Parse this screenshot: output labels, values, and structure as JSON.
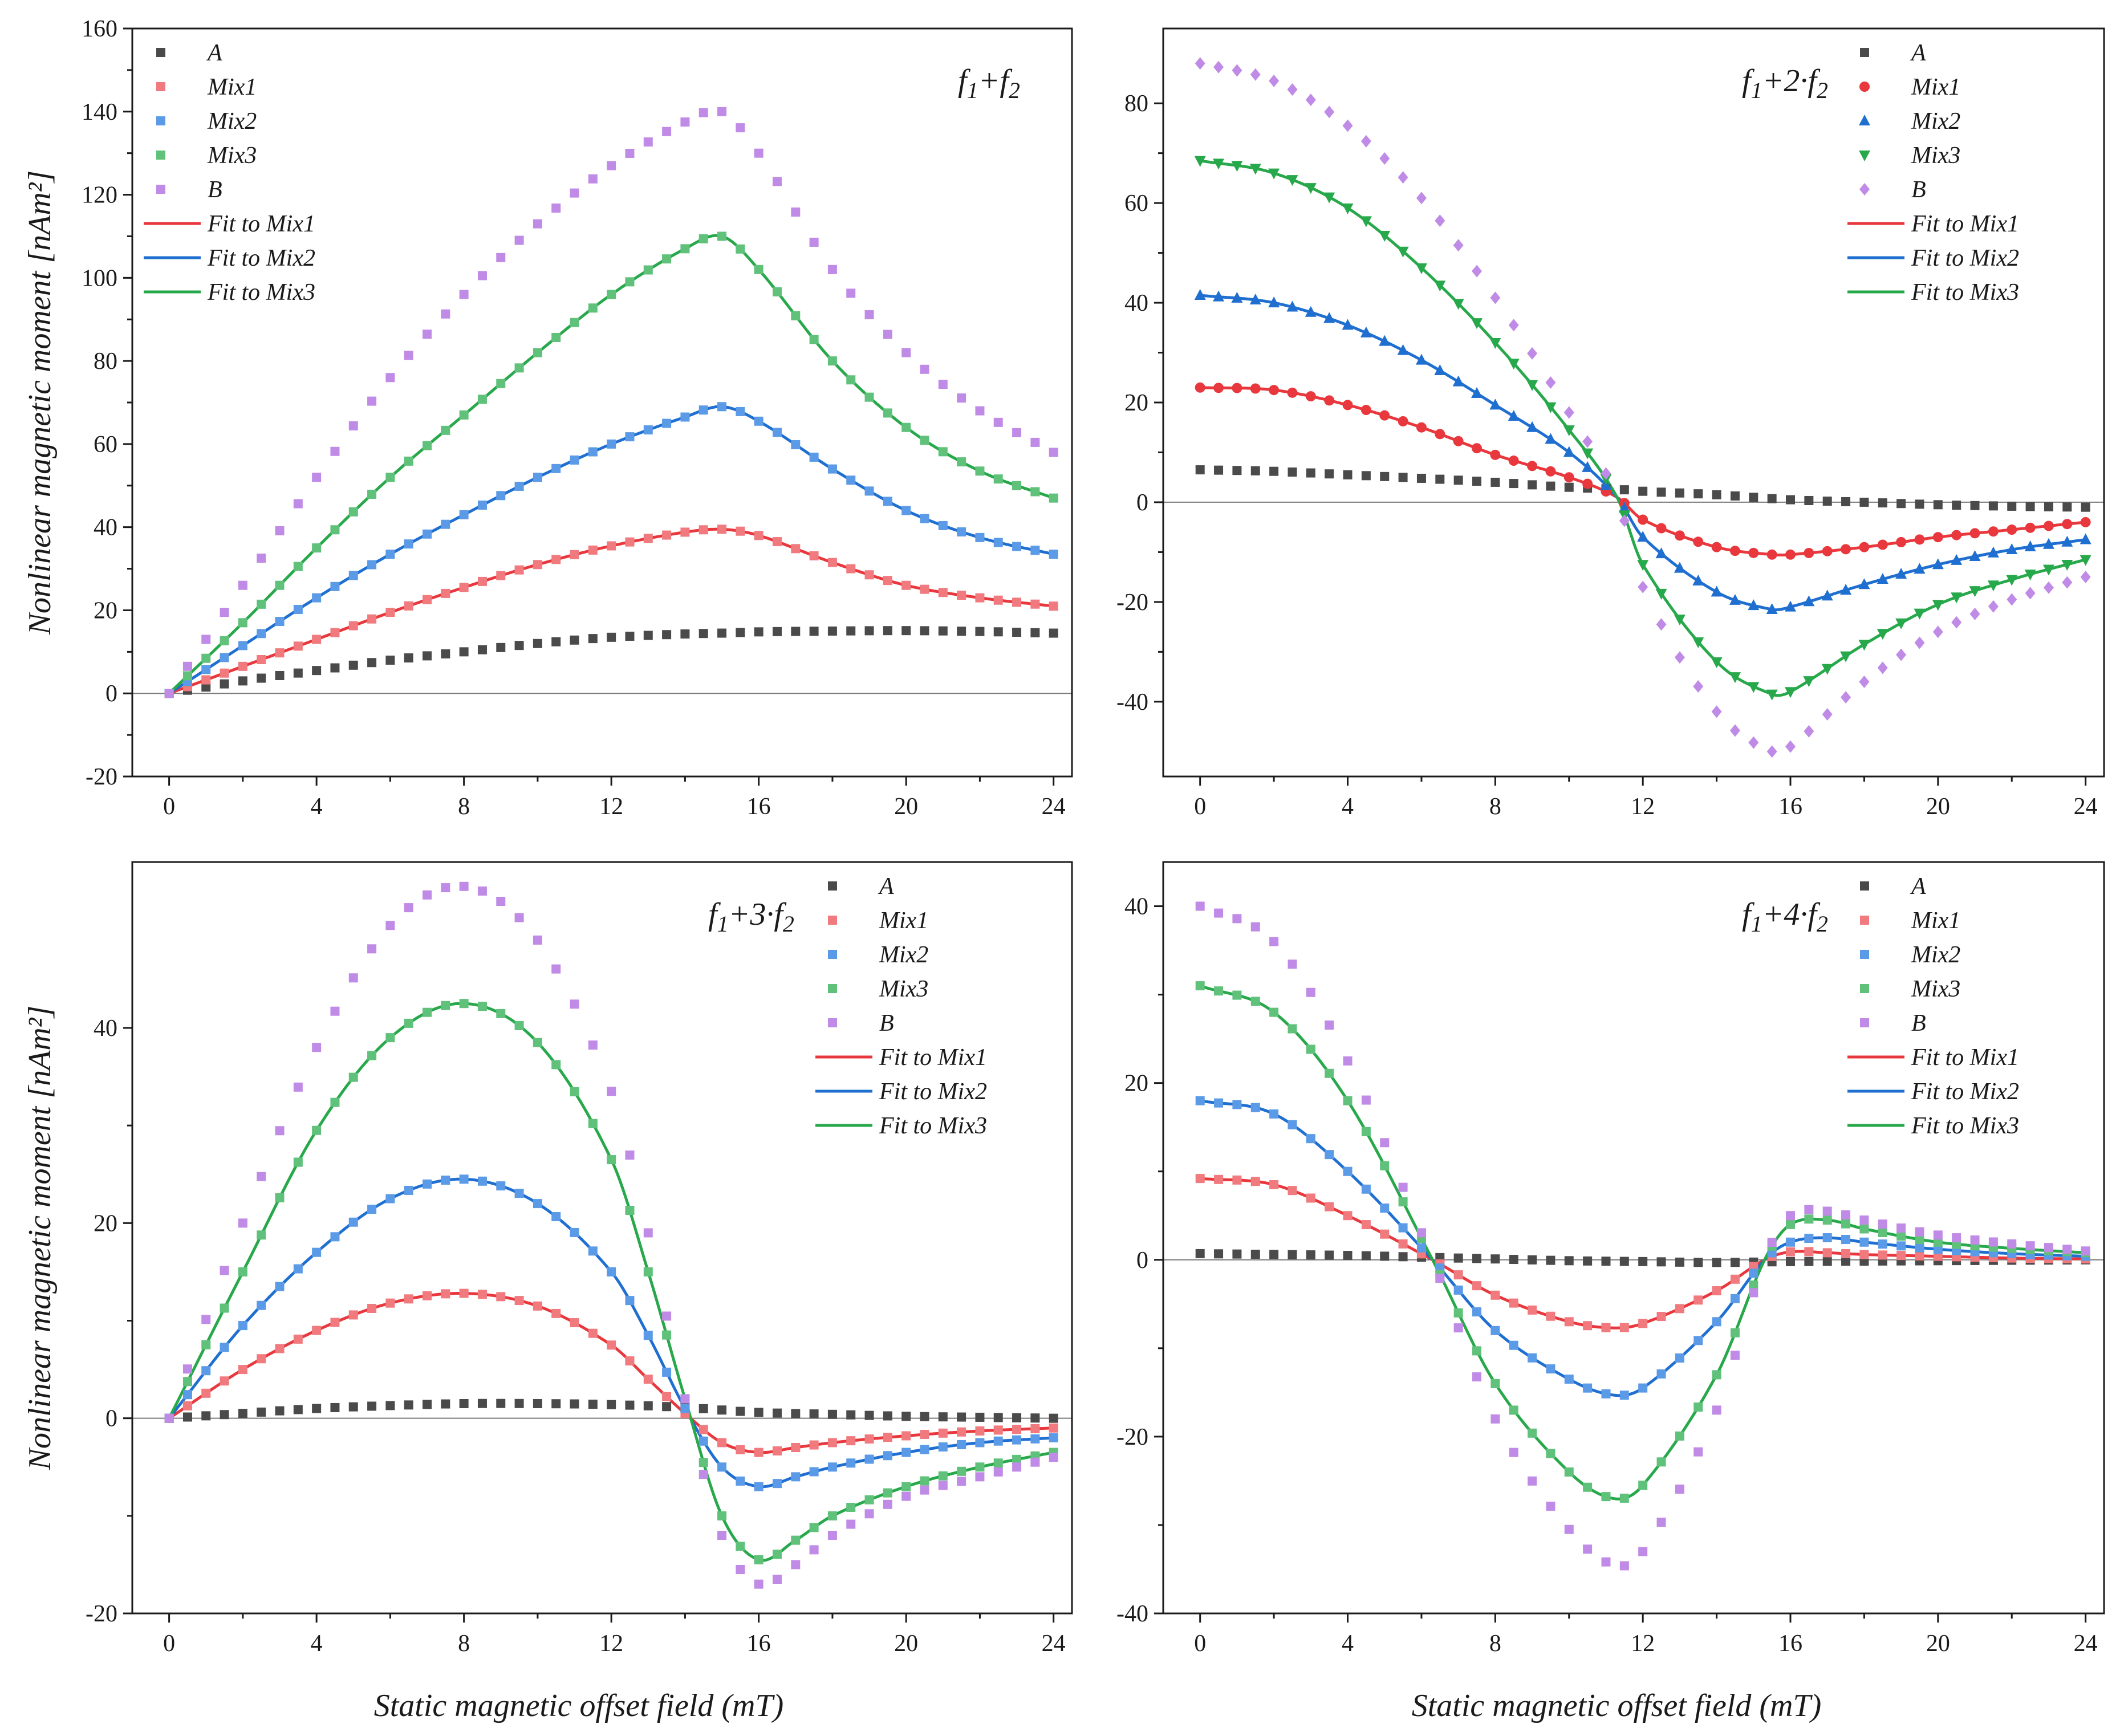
{
  "figure": {
    "shared_xlabel": "Static magnetic offset field (mT)",
    "shared_ylabel": "Nonlinear magnetic moment [nAm²]"
  },
  "styles": {
    "A": {
      "color": "#4a4a4a",
      "fill": "#4a4a4a"
    },
    "Mix1": {
      "color": "#e8383d",
      "fill": "#f07a7e"
    },
    "Mix2": {
      "color": "#1f6fd1",
      "fill": "#5b9ae6"
    },
    "Mix3": {
      "color": "#27a84a",
      "fill": "#5fc17a"
    },
    "B": {
      "color": "#b57ce0",
      "fill": "#c08be6"
    }
  },
  "chart_data": [
    {
      "type": "scatter",
      "panel": "top-left",
      "annotation": {
        "base": "f",
        "parts": [
          "1",
          "+f",
          "2"
        ]
      },
      "xlabel": "",
      "ylabel": "Nonlinear magnetic moment [nAm²]",
      "xlim": [
        -1,
        24.5
      ],
      "ylim": [
        -20,
        160
      ],
      "xticks": [
        0,
        4,
        8,
        12,
        16,
        20,
        24
      ],
      "yticks": [
        -20,
        0,
        20,
        40,
        60,
        80,
        100,
        120,
        140,
        160
      ],
      "marker": "square",
      "legend_loc": "top-left",
      "series": [
        {
          "name": "A",
          "x": [
            0,
            2,
            4,
            6,
            8,
            10,
            12,
            14,
            15,
            16,
            18,
            20,
            22,
            24
          ],
          "values": [
            0,
            3,
            5.5,
            8,
            10,
            12,
            13.5,
            14.3,
            14.5,
            14.8,
            15,
            15.1,
            14.9,
            14.5
          ]
        },
        {
          "name": "Mix1",
          "x": [
            0,
            2,
            4,
            6,
            8,
            10,
            12,
            14,
            15,
            16,
            18,
            20,
            22,
            24
          ],
          "values": [
            0,
            6.5,
            13,
            19.5,
            25.5,
            31,
            35.5,
            38.8,
            39.5,
            38,
            31.5,
            26,
            23,
            21
          ]
        },
        {
          "name": "Mix2",
          "x": [
            0,
            2,
            4,
            6,
            8,
            10,
            12,
            14,
            15,
            16,
            18,
            20,
            22,
            24
          ],
          "values": [
            0,
            11.5,
            23,
            33.5,
            43,
            52,
            60,
            66.5,
            69,
            65.5,
            54,
            44,
            37.5,
            33.5
          ]
        },
        {
          "name": "Mix3",
          "x": [
            0,
            2,
            4,
            6,
            8,
            10,
            12,
            14,
            15,
            16,
            18,
            20,
            22,
            24
          ],
          "values": [
            0,
            17,
            35,
            52,
            67,
            82,
            96,
            107,
            110,
            102,
            80,
            64,
            53.5,
            47
          ]
        },
        {
          "name": "B",
          "x": [
            0,
            2,
            4,
            6,
            8,
            10,
            12,
            14,
            15,
            16,
            18,
            20,
            22,
            24
          ],
          "values": [
            0,
            26,
            52,
            76,
            96,
            113,
            127,
            137.5,
            140,
            130,
            102,
            82,
            68,
            58
          ]
        },
        {
          "name": "Fit to Mix1",
          "of": "Mix1"
        },
        {
          "name": "Fit to Mix2",
          "of": "Mix2"
        },
        {
          "name": "Fit to Mix3",
          "of": "Mix3"
        }
      ]
    },
    {
      "type": "scatter",
      "panel": "top-right",
      "annotation": {
        "base": "f",
        "parts": [
          "1",
          "+2·f",
          "2"
        ]
      },
      "xlabel": "",
      "ylabel": "",
      "xlim": [
        -1,
        24.5
      ],
      "ylim": [
        -55,
        95
      ],
      "xticks": [
        0,
        4,
        8,
        12,
        16,
        20,
        24
      ],
      "yticks": [
        -40,
        -20,
        0,
        20,
        40,
        60,
        80
      ],
      "marker": "mixed",
      "legend_loc": "top-right",
      "series": [
        {
          "name": "A",
          "marker": "square",
          "x": [
            0,
            2,
            4,
            6,
            8,
            10,
            11.3,
            12,
            14,
            16,
            18,
            20,
            22,
            24
          ],
          "values": [
            6.5,
            6.2,
            5.5,
            4.8,
            4,
            3,
            2.6,
            2.2,
            1.5,
            0.5,
            0,
            -0.5,
            -0.8,
            -1
          ]
        },
        {
          "name": "Mix1",
          "marker": "circle",
          "x": [
            0,
            2,
            4,
            6,
            8,
            10,
            11.3,
            12,
            14,
            15.5,
            16,
            18,
            20,
            22,
            24
          ],
          "values": [
            23,
            22.5,
            19.5,
            15,
            9.5,
            5,
            1,
            -3.5,
            -9,
            -10.5,
            -10.5,
            -9,
            -7,
            -5.5,
            -4
          ]
        },
        {
          "name": "Mix2",
          "marker": "triangle-up",
          "x": [
            0,
            2,
            4,
            6,
            8,
            10,
            11.3,
            12,
            14,
            15.5,
            16,
            18,
            20,
            22,
            24
          ],
          "values": [
            41.5,
            40,
            35.5,
            28.5,
            19.5,
            10,
            1,
            -7,
            -18,
            -21.5,
            -21,
            -16.5,
            -12.5,
            -9.5,
            -7.5
          ]
        },
        {
          "name": "Mix3",
          "marker": "triangle-down",
          "x": [
            0,
            2,
            4,
            6,
            8,
            10,
            11.3,
            12,
            14,
            15.5,
            16,
            18,
            20,
            22,
            24
          ],
          "values": [
            68.5,
            66,
            59,
            47,
            32,
            14.5,
            1,
            -12.5,
            -32,
            -38.5,
            -38,
            -28.5,
            -20.5,
            -15.5,
            -11.5
          ]
        },
        {
          "name": "B",
          "marker": "diamond",
          "x": [
            0,
            2,
            4,
            6,
            8,
            10,
            11.3,
            12,
            14,
            15.5,
            16,
            18,
            20,
            22,
            24
          ],
          "values": [
            88,
            84.5,
            75.5,
            61,
            41,
            18,
            1,
            -17,
            -42,
            -50,
            -49,
            -36,
            -26,
            -19.5,
            -15
          ]
        },
        {
          "name": "Fit to Mix1",
          "of": "Mix1"
        },
        {
          "name": "Fit to Mix2",
          "of": "Mix2"
        },
        {
          "name": "Fit to Mix3",
          "of": "Mix3"
        }
      ]
    },
    {
      "type": "scatter",
      "panel": "bottom-left",
      "annotation": {
        "base": "f",
        "parts": [
          "1",
          "+3·f",
          "2"
        ]
      },
      "xlabel": "Static magnetic offset field (mT)",
      "ylabel": "Nonlinear magnetic moment [nAm²]",
      "xlim": [
        -1,
        24.5
      ],
      "ylim": [
        -20,
        57
      ],
      "xticks": [
        0,
        4,
        8,
        12,
        16,
        20,
        24
      ],
      "yticks": [
        -20,
        0,
        20,
        40
      ],
      "marker": "square",
      "legend_loc": "top-right",
      "series": [
        {
          "name": "A",
          "x": [
            0,
            2,
            4,
            6,
            8,
            10,
            12,
            14,
            16,
            18,
            20,
            22,
            24
          ],
          "values": [
            0,
            0.5,
            1,
            1.3,
            1.5,
            1.5,
            1.4,
            1.1,
            0.6,
            0.4,
            0.2,
            0.1,
            0
          ]
        },
        {
          "name": "Mix1",
          "x": [
            0,
            2,
            4,
            6,
            8,
            10,
            12,
            13,
            14,
            15,
            16,
            17,
            18,
            20,
            22,
            24
          ],
          "values": [
            0,
            5,
            9,
            11.8,
            12.8,
            11.5,
            7.5,
            4,
            0.5,
            -2.5,
            -3.5,
            -3,
            -2.5,
            -1.8,
            -1.3,
            -1
          ]
        },
        {
          "name": "Mix2",
          "x": [
            0,
            2,
            4,
            6,
            8,
            10,
            12,
            13,
            14,
            15,
            16,
            17,
            18,
            20,
            22,
            24
          ],
          "values": [
            0,
            9.5,
            17,
            22.5,
            24.5,
            22,
            15,
            8.5,
            1,
            -5,
            -7,
            -6,
            -5,
            -3.5,
            -2.5,
            -2
          ]
        },
        {
          "name": "Mix3",
          "x": [
            0,
            2,
            4,
            6,
            8,
            10,
            12,
            13,
            14,
            15,
            16,
            17,
            18,
            20,
            22,
            24
          ],
          "values": [
            0,
            15,
            29.5,
            39,
            42.5,
            38.5,
            26.5,
            15,
            2,
            -10,
            -14.5,
            -12.5,
            -10,
            -7,
            -5,
            -3.5
          ]
        },
        {
          "name": "B",
          "x": [
            0,
            2,
            4,
            6,
            8,
            10,
            12,
            13,
            14,
            15,
            16,
            17,
            18,
            20,
            22,
            24
          ],
          "values": [
            0,
            20,
            38,
            50.5,
            54.5,
            49,
            33.5,
            19,
            2,
            -12,
            -17,
            -15,
            -12,
            -8,
            -6,
            -4
          ]
        },
        {
          "name": "Fit to Mix1",
          "of": "Mix1"
        },
        {
          "name": "Fit to Mix2",
          "of": "Mix2"
        },
        {
          "name": "Fit to Mix3",
          "of": "Mix3"
        }
      ]
    },
    {
      "type": "scatter",
      "panel": "bottom-right",
      "annotation": {
        "base": "f",
        "parts": [
          "1",
          "+4·f",
          "2"
        ]
      },
      "xlabel": "Static magnetic offset field (mT)",
      "ylabel": "",
      "xlim": [
        -1,
        24.5
      ],
      "ylim": [
        -40,
        45
      ],
      "xticks": [
        0,
        4,
        8,
        12,
        16,
        20,
        24
      ],
      "yticks": [
        -40,
        -20,
        0,
        20,
        40
      ],
      "marker": "square",
      "legend_loc": "top-right",
      "series": [
        {
          "name": "A",
          "x": [
            0,
            4,
            6,
            8,
            10,
            12,
            14,
            16,
            20,
            24
          ],
          "values": [
            0.7,
            0.5,
            0.3,
            0.1,
            -0.1,
            -0.2,
            -0.3,
            -0.2,
            -0.1,
            0
          ]
        },
        {
          "name": "Mix1",
          "x": [
            0,
            2,
            4,
            6.3,
            8,
            10,
            11.2,
            12,
            14,
            15.3,
            16,
            17,
            18,
            20,
            22,
            24
          ],
          "values": [
            9.2,
            8.5,
            5,
            0,
            -4,
            -7,
            -7.7,
            -7.2,
            -3.5,
            0,
            0.9,
            0.8,
            0.6,
            0.4,
            0.2,
            0.1
          ]
        },
        {
          "name": "Mix2",
          "x": [
            0,
            2,
            4,
            6.3,
            8,
            10,
            11.2,
            12,
            14,
            15.3,
            16,
            17,
            18,
            20,
            22,
            24
          ],
          "values": [
            18,
            16.5,
            10,
            0,
            -8,
            -13.5,
            -15.3,
            -14.5,
            -7,
            0,
            2,
            2.5,
            2,
            1.2,
            0.7,
            0.4
          ]
        },
        {
          "name": "Mix3",
          "x": [
            0,
            2,
            4,
            6.3,
            8,
            10,
            11.2,
            12,
            14,
            15.3,
            16,
            17,
            18,
            20,
            22,
            24
          ],
          "values": [
            31,
            28,
            18,
            0,
            -14,
            -24,
            -27,
            -25.5,
            -13,
            0,
            4,
            4.5,
            3.5,
            2,
            1.3,
            0.8
          ]
        },
        {
          "name": "B",
          "x": [
            0,
            2,
            4,
            6.3,
            8,
            10,
            11.2,
            12,
            14,
            15.3,
            16,
            17,
            18,
            20,
            22,
            24
          ],
          "values": [
            40,
            36,
            22.5,
            0,
            -18,
            -30.5,
            -34.5,
            -33,
            -17,
            0,
            5,
            5.5,
            4.5,
            2.8,
            1.8,
            1
          ]
        },
        {
          "name": "Fit to Mix1",
          "of": "Mix1"
        },
        {
          "name": "Fit to Mix2",
          "of": "Mix2"
        },
        {
          "name": "Fit to Mix3",
          "of": "Mix3"
        }
      ]
    }
  ]
}
